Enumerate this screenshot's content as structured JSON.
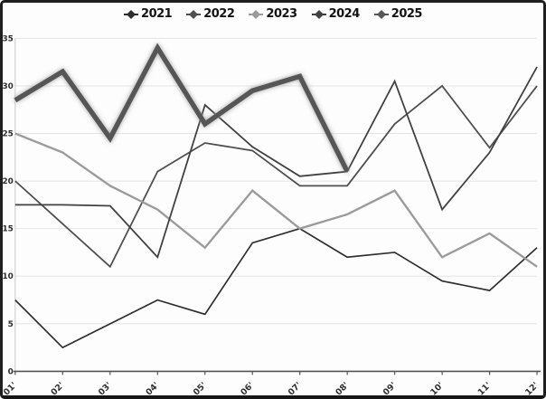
{
  "frame": {
    "background": "#fdfdfd",
    "border_color": "#1f1f1f"
  },
  "legend": {
    "position": "top-center",
    "marker": "diamond"
  },
  "chart_data": {
    "type": "line",
    "title": "",
    "xlabel": "",
    "ylabel": "",
    "categories": [
      "01'",
      "02'",
      "03'",
      "04'",
      "05'",
      "06'",
      "07'",
      "08'",
      "09'",
      "10'",
      "11'",
      "12'"
    ],
    "y_ticks": [
      0,
      5,
      10,
      15,
      20,
      25,
      30,
      35
    ],
    "ylim": [
      0,
      35
    ],
    "grid": "horizontal",
    "gridline_color": "#e4e4e4",
    "axis_color": "#555555",
    "tick_label_color": "#2e2e2e",
    "legend_position": "top",
    "series": [
      {
        "name": "2021",
        "color": "#2e2e2e",
        "width": 1.7,
        "highlight": false,
        "values": [
          7.5,
          2.5,
          5,
          7.5,
          6,
          13.5,
          15,
          12,
          12.5,
          9.5,
          8.5,
          13
        ]
      },
      {
        "name": "2022",
        "color": "#4f4f4f",
        "width": 1.8,
        "highlight": false,
        "values": [
          20,
          15.5,
          11,
          21,
          24,
          23.2,
          19.5,
          19.5,
          26,
          30,
          23.5,
          30
        ]
      },
      {
        "name": "2023",
        "color": "#9b9b9b",
        "width": 2.4,
        "highlight": false,
        "values": [
          25,
          23,
          19.5,
          17,
          13,
          19,
          15,
          16.5,
          19,
          12,
          14.5,
          11
        ]
      },
      {
        "name": "2024",
        "color": "#414141",
        "width": 1.8,
        "highlight": false,
        "values": [
          17.5,
          17.5,
          17.4,
          12,
          28,
          23.6,
          20.5,
          21,
          30.5,
          17,
          23,
          32
        ]
      },
      {
        "name": "2025",
        "color": "#565656",
        "width": 5.5,
        "highlight": true,
        "values": [
          28.5,
          31.5,
          24.5,
          34,
          26,
          29.5,
          31,
          21
        ]
      }
    ]
  }
}
